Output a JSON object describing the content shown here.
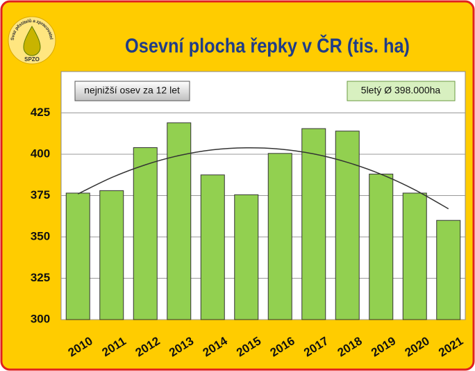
{
  "chart_data": {
    "type": "bar",
    "title": "Osevní plocha řepky v ČR (tis. ha)",
    "logo_text": "Svaz pěstitelů a zpracovatelů olejnin",
    "logo_abbr": "SPZO",
    "annotations": [
      "nejnižší osev za 12 let",
      "5letý Ø 398.000ha"
    ],
    "categories": [
      "2010",
      "2011",
      "2012",
      "2013",
      "2014",
      "2015",
      "2016",
      "2017",
      "2018",
      "2019",
      "2020",
      "2021"
    ],
    "values": [
      376.5,
      378,
      404,
      419,
      387.5,
      375.5,
      400.5,
      415.5,
      414,
      388,
      376.5,
      360
    ],
    "trend": [
      376,
      385.9,
      393.6,
      399.2,
      402.7,
      403.9,
      403.1,
      400.2,
      395.1,
      387.9,
      378.5,
      367
    ],
    "color": "#92d050",
    "trend_color": "#333333",
    "ylim": [
      300,
      450
    ],
    "yticks": [
      300,
      325,
      350,
      375,
      400,
      425
    ],
    "grid": true
  }
}
